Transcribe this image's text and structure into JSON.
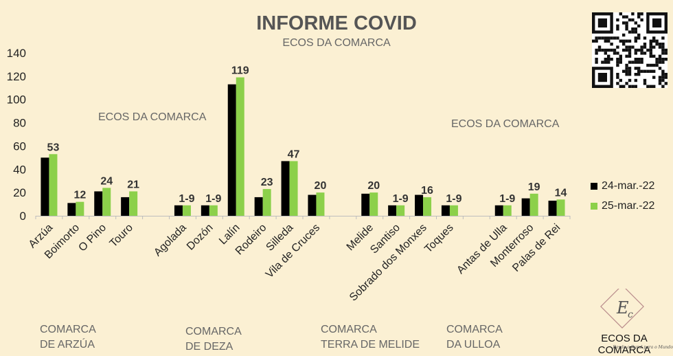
{
  "title": "INFORME COVID",
  "subtitle": "ECOS DA COMARCA",
  "watermarks": [
    "ECOS DA COMARCA",
    "ECOS DA COMARCA"
  ],
  "legend": [
    {
      "label": "24-mar.-22",
      "color": "#000000"
    },
    {
      "label": "25-mar.-22",
      "color": "#8cd04a"
    }
  ],
  "group_labels": [
    {
      "line1": "COMARCA",
      "line2": "DE ARZÚA"
    },
    {
      "line1": "COMARCA",
      "line2": "DE DEZA"
    },
    {
      "line1": "COMARCA",
      "line2": "TERRA DE MELIDE"
    },
    {
      "line1": "COMARCA",
      "line2": "DA ULLOA"
    }
  ],
  "logo": {
    "text": "ECOS DA COMARCA",
    "tagline": "Desde o Rural para o Mundo",
    "mark": "Ec"
  },
  "chart_data": {
    "type": "bar",
    "ylim": [
      0,
      140
    ],
    "yticks": [
      0,
      20,
      40,
      60,
      80,
      100,
      120,
      140
    ],
    "grid": false,
    "legend_position": "right",
    "categories": [
      "Arzúa",
      "Boimorto",
      "O Pino",
      "Touro",
      "",
      "Agolada",
      "Dozón",
      "Lalín",
      "Rodeiro",
      "Silleda",
      "Vila de Cruces",
      "",
      "Melide",
      "Santiso",
      "Sobrado dos Monxes",
      "Toques",
      "",
      "Antas de Ulla",
      "Monterroso",
      "Palas de Rei"
    ],
    "series": [
      {
        "name": "24-mar.-22",
        "color": "#000000",
        "values": [
          50,
          11,
          21,
          16,
          null,
          9,
          9,
          113,
          16,
          47,
          18,
          null,
          19,
          9,
          18,
          9,
          null,
          9,
          15,
          13
        ]
      },
      {
        "name": "25-mar.-22",
        "color": "#8cd04a",
        "values": [
          53,
          12,
          24,
          21,
          null,
          9,
          9,
          119,
          23,
          47,
          20,
          null,
          20,
          9,
          16,
          9,
          null,
          9,
          19,
          14
        ]
      }
    ],
    "data_labels": [
      "53",
      "12",
      "24",
      "21",
      "",
      "1-9",
      "1-9",
      "119",
      "23",
      "47",
      "20",
      "",
      "20",
      "1-9",
      "16",
      "1-9",
      "",
      "1-9",
      "19",
      "14"
    ]
  }
}
